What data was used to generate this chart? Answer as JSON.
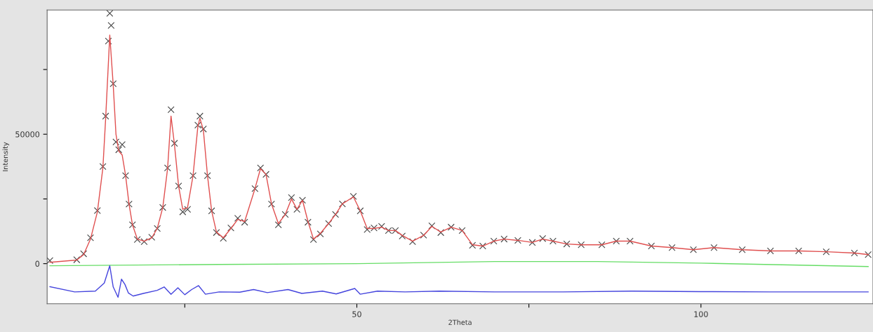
{
  "chart_data": {
    "type": "line",
    "xlabel": "2Theta",
    "ylabel": "Intensity",
    "xlim": [
      5,
      125
    ],
    "ylim": [
      -15500,
      98000
    ],
    "xticks": [
      {
        "value": 25,
        "label": null
      },
      50,
      {
        "value": 75,
        "label": null
      },
      100
    ],
    "yticks": [
      0,
      {
        "value": 25000,
        "label": null
      },
      50000,
      {
        "value": 75000,
        "label": null
      }
    ],
    "grid": false,
    "series": [
      {
        "type": "scatter",
        "marker": "cross",
        "color": "#444444",
        "x": [
          5.4,
          9.3,
          10.3,
          11.3,
          12.3,
          13.1,
          13.5,
          13.9,
          14.1,
          14.3,
          14.6,
          15.0,
          15.4,
          15.9,
          16.4,
          16.9,
          17.4,
          18.1,
          19.1,
          20.2,
          21.0,
          21.8,
          22.5,
          23.0,
          23.5,
          24.1,
          24.7,
          25.4,
          26.2,
          26.9,
          27.2,
          27.7,
          28.3,
          28.9,
          29.6,
          30.6,
          31.7,
          32.7,
          33.7,
          35.2,
          36.0,
          36.8,
          37.6,
          38.6,
          39.6,
          40.5,
          41.3,
          42.1,
          42.9,
          43.7,
          44.7,
          45.9,
          46.9,
          47.9,
          49.5,
          50.5,
          51.5,
          52.5,
          53.6,
          54.6,
          55.6,
          56.6,
          58.1,
          59.7,
          60.9,
          62.2,
          63.7,
          65.3,
          66.8,
          68.3,
          69.9,
          71.4,
          73.4,
          75.5,
          77.0,
          78.5,
          80.5,
          82.6,
          85.6,
          87.7,
          89.7,
          92.8,
          95.8,
          98.9,
          101.9,
          106.0,
          110.1,
          114.2,
          118.2,
          122.3,
          124.3
        ],
        "values": [
          1200,
          1500,
          3800,
          10000,
          20500,
          37500,
          57000,
          86000,
          96700,
          92000,
          69500,
          47000,
          44000,
          46000,
          34000,
          23000,
          15000,
          9300,
          8500,
          10200,
          13600,
          21700,
          37000,
          59500,
          46500,
          30000,
          20000,
          21000,
          34000,
          53500,
          57000,
          52000,
          34000,
          20400,
          12000,
          9800,
          13800,
          17500,
          16000,
          29000,
          37000,
          34500,
          23000,
          15000,
          19000,
          25500,
          21000,
          24500,
          16000,
          9300,
          11500,
          15500,
          19000,
          23100,
          26000,
          20400,
          13200,
          13800,
          14400,
          12800,
          12800,
          10700,
          8500,
          11000,
          14600,
          12000,
          14100,
          12800,
          7100,
          6800,
          8700,
          9500,
          9000,
          8200,
          9700,
          8700,
          7600,
          7300,
          7300,
          8700,
          8700,
          6800,
          6200,
          5400,
          6200,
          5400,
          4900,
          4900,
          4600,
          4100,
          3500
        ]
      },
      {
        "color": "#e05050",
        "x": [
          5.4,
          9.3,
          10.3,
          11.3,
          12.3,
          13.1,
          13.5,
          14.1,
          14.6,
          15.0,
          15.4,
          15.9,
          16.4,
          16.9,
          17.4,
          18.1,
          19.1,
          20.2,
          21.0,
          21.8,
          22.5,
          23.0,
          23.5,
          24.1,
          24.7,
          25.4,
          26.2,
          26.9,
          27.2,
          27.7,
          28.3,
          28.9,
          29.6,
          30.6,
          31.7,
          32.7,
          33.7,
          35.2,
          36.0,
          36.8,
          37.6,
          38.6,
          39.6,
          40.5,
          41.3,
          42.1,
          42.9,
          43.7,
          44.7,
          45.9,
          46.9,
          47.9,
          49.5,
          50.5,
          51.5,
          52.5,
          53.6,
          54.6,
          55.6,
          56.6,
          58.1,
          59.7,
          60.9,
          62.2,
          63.7,
          65.3,
          66.8,
          68.3,
          69.9,
          71.4,
          73.4,
          75.5,
          77.0,
          78.5,
          80.5,
          82.6,
          85.6,
          87.7,
          89.7,
          92.8,
          95.8,
          98.9,
          101.9,
          106.0,
          110.1,
          114.2,
          118.2,
          122.3,
          124.3
        ],
        "values": [
          500,
          1400,
          3500,
          9500,
          20000,
          37000,
          56000,
          88300,
          69000,
          50000,
          43500,
          42000,
          34000,
          23000,
          15000,
          9500,
          8700,
          10000,
          13600,
          21700,
          36700,
          57000,
          46000,
          30000,
          21000,
          21700,
          34000,
          53000,
          56200,
          51600,
          34000,
          20400,
          12200,
          10000,
          13600,
          17100,
          16300,
          29000,
          36700,
          34500,
          23100,
          15500,
          19000,
          25000,
          21000,
          24500,
          16300,
          9500,
          11700,
          15500,
          19000,
          23100,
          25800,
          20400,
          13600,
          13600,
          14100,
          12800,
          12800,
          10900,
          8700,
          10900,
          14400,
          12200,
          14100,
          12800,
          7300,
          6800,
          8700,
          9500,
          9000,
          8200,
          9500,
          8700,
          7600,
          7300,
          7300,
          8700,
          8700,
          6800,
          6200,
          5400,
          6200,
          5400,
          4900,
          4900,
          4600,
          4100,
          3500
        ]
      },
      {
        "color": "#66dd66",
        "x": [
          5.4,
          30,
          50,
          70,
          85,
          100,
          124.3
        ],
        "values": [
          -800,
          -300,
          0,
          800,
          800,
          200,
          -1100
        ]
      },
      {
        "color": "#4444dd",
        "x": [
          5.4,
          9,
          12,
          13.3,
          14.1,
          14.6,
          15.3,
          15.8,
          16.3,
          16.8,
          17.5,
          19,
          21,
          22,
          23,
          24,
          25,
          26,
          27,
          28,
          30,
          33,
          35,
          37,
          40,
          42,
          45,
          47,
          49.7,
          50.5,
          53,
          57,
          62,
          70,
          80,
          90,
          100,
          110,
          124.3
        ],
        "values": [
          -8900,
          -10900,
          -10600,
          -7500,
          -800,
          -9000,
          -13000,
          -6000,
          -8000,
          -11300,
          -12500,
          -11500,
          -10300,
          -9000,
          -11800,
          -9300,
          -12000,
          -10000,
          -8500,
          -11800,
          -10900,
          -11000,
          -10000,
          -11200,
          -10000,
          -11500,
          -10600,
          -11700,
          -9600,
          -11800,
          -10600,
          -10900,
          -10600,
          -10900,
          -10900,
          -10600,
          -10800,
          -10900,
          -10900
        ]
      }
    ]
  }
}
